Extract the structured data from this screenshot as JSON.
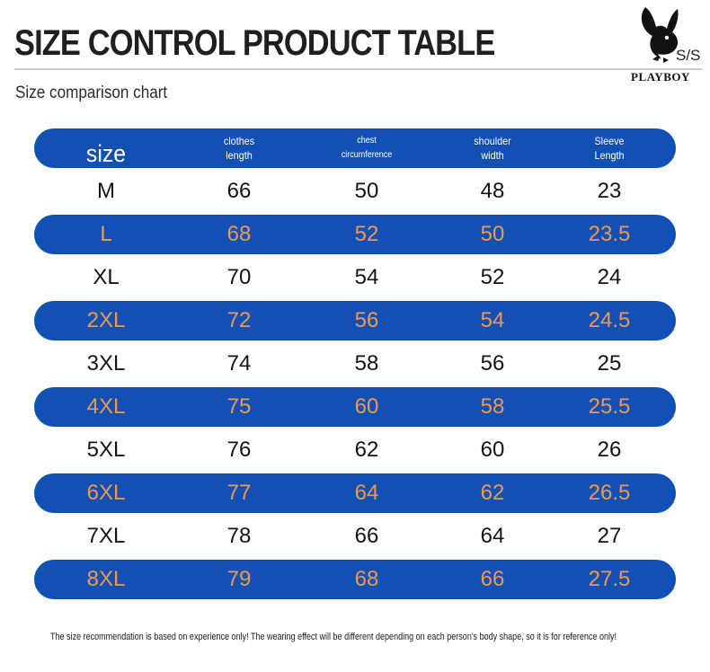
{
  "header": {
    "title": "SIZE CONTROL PRODUCT TABLE",
    "subtitle": "Size comparison chart"
  },
  "brand": {
    "season": "S/S",
    "name": "PLAYBOY",
    "logo_icon": "bunny-head-icon"
  },
  "table": {
    "columns": [
      {
        "line1": "size",
        "line2": ""
      },
      {
        "line1": "clothes",
        "line2": "length"
      },
      {
        "line1": "chest",
        "line2": "circumference"
      },
      {
        "line1": "shoulder",
        "line2": "width"
      },
      {
        "line1": "Sleeve",
        "line2": "Length"
      }
    ],
    "rows": [
      [
        "M",
        "66",
        "50",
        "48",
        "23"
      ],
      [
        "L",
        "68",
        "52",
        "50",
        "23.5"
      ],
      [
        "XL",
        "70",
        "54",
        "52",
        "24"
      ],
      [
        "2XL",
        "72",
        "56",
        "54",
        "24.5"
      ],
      [
        "3XL",
        "74",
        "58",
        "56",
        "25"
      ],
      [
        "4XL",
        "75",
        "60",
        "58",
        "25.5"
      ],
      [
        "5XL",
        "76",
        "62",
        "60",
        "26"
      ],
      [
        "6XL",
        "77",
        "64",
        "62",
        "26.5"
      ],
      [
        "7XL",
        "78",
        "66",
        "64",
        "27"
      ],
      [
        "8XL",
        "79",
        "68",
        "66",
        "27.5"
      ]
    ]
  },
  "footer": {
    "note": "The size recommendation is based on experience only! The wearing effect will be different depending on each person's body shape, so it is for reference only!"
  },
  "colors": {
    "band": "#1250b4",
    "band_text": "#ee9a4e",
    "plain_text": "#141414"
  }
}
